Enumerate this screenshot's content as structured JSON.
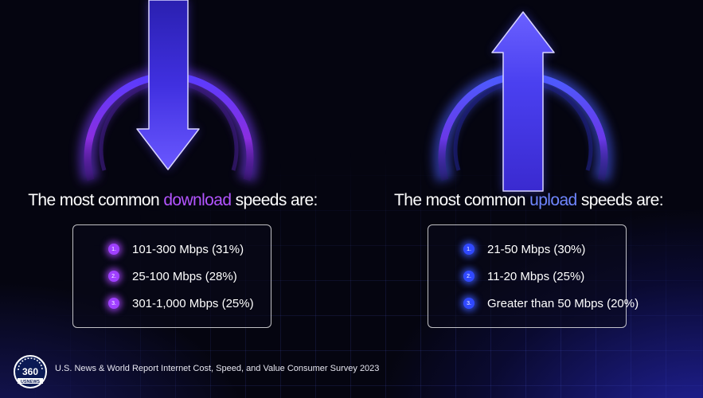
{
  "download": {
    "heading_pre": "The most common ",
    "heading_highlight": "download",
    "heading_post": " speeds are:",
    "items": [
      {
        "num": "1.",
        "text": "101-300 Mbps (31%)"
      },
      {
        "num": "2.",
        "text": "25-100 Mbps (28%)"
      },
      {
        "num": "3.",
        "text": "301-1,000 Mbps (25%)"
      }
    ],
    "accent": "#a040ff"
  },
  "upload": {
    "heading_pre": "The most common ",
    "heading_highlight": "upload",
    "heading_post": " speeds are:",
    "items": [
      {
        "num": "1.",
        "text": "21-50 Mbps (30%)"
      },
      {
        "num": "2.",
        "text": "11-20 Mbps (25%)"
      },
      {
        "num": "3.",
        "text": "Greater than 50 Mbps (20%)"
      }
    ],
    "accent": "#3048ff"
  },
  "logo": {
    "number": "360",
    "brand": "USNEWS"
  },
  "source": "U.S. News & World Report Internet Cost, Speed, and Value Consumer Survey 2023",
  "icons": {
    "download": "arrow-down-icon",
    "upload": "arrow-up-icon"
  }
}
